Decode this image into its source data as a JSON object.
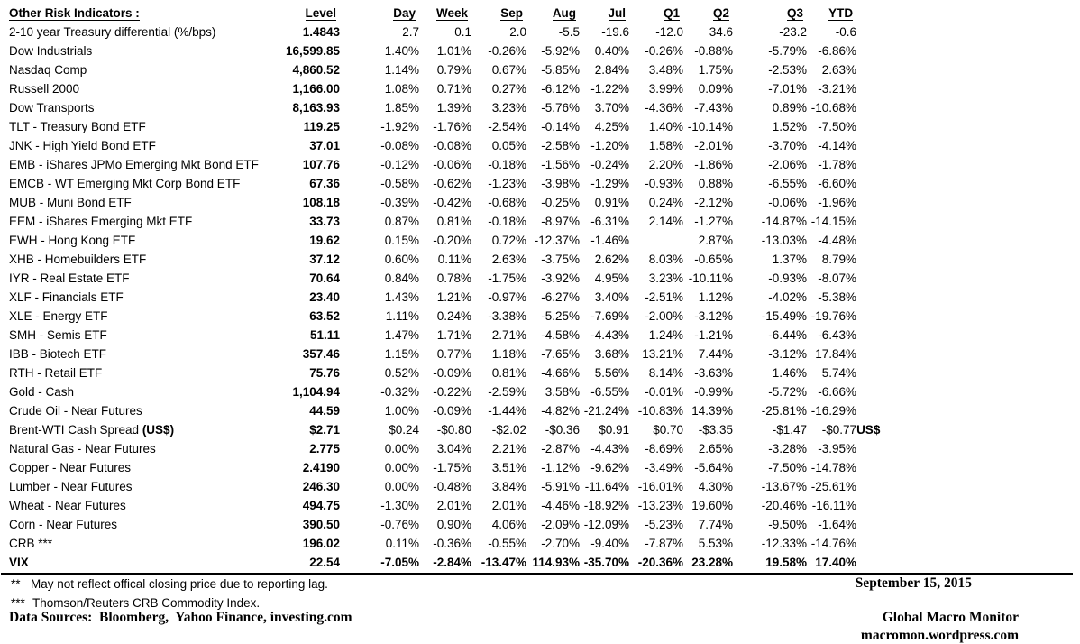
{
  "page": {
    "background": "#ffffff",
    "text_color": "#000000"
  },
  "table": {
    "title": "Other Risk Indicators :",
    "columns": [
      "Level",
      "Day",
      "Week",
      "Sep",
      "Aug",
      "Jul",
      "Q1",
      "Q2",
      "Q3",
      "YTD"
    ],
    "rows": [
      {
        "label": "2-10 year Treasury differential (%/bps)",
        "label_bold": "",
        "values": [
          "1.4843",
          "2.7",
          "0.1",
          "2.0",
          "-5.5",
          "-19.6",
          "-12.0",
          "34.6",
          "-23.2",
          "-0.6"
        ],
        "extra": "",
        "bold": false
      },
      {
        "label": "Dow Industrials",
        "label_bold": "",
        "values": [
          "16,599.85",
          "1.40%",
          "1.01%",
          "-0.26%",
          "-5.92%",
          "0.40%",
          "-0.26%",
          "-0.88%",
          "-5.79%",
          "-6.86%"
        ],
        "extra": "",
        "bold": false
      },
      {
        "label": "Nasdaq Comp",
        "label_bold": "",
        "values": [
          "4,860.52",
          "1.14%",
          "0.79%",
          "0.67%",
          "-5.85%",
          "2.84%",
          "3.48%",
          "1.75%",
          "-2.53%",
          "2.63%"
        ],
        "extra": "",
        "bold": false
      },
      {
        "label": "Russell 2000",
        "label_bold": "",
        "values": [
          "1,166.00",
          "1.08%",
          "0.71%",
          "0.27%",
          "-6.12%",
          "-1.22%",
          "3.99%",
          "0.09%",
          "-7.01%",
          "-3.21%"
        ],
        "extra": "",
        "bold": false
      },
      {
        "label": "Dow Transports",
        "label_bold": "",
        "values": [
          "8,163.93",
          "1.85%",
          "1.39%",
          "3.23%",
          "-5.76%",
          "3.70%",
          "-4.36%",
          "-7.43%",
          "0.89%",
          "-10.68%"
        ],
        "extra": "",
        "bold": false
      },
      {
        "label": "TLT - Treasury Bond ETF",
        "label_bold": "",
        "values": [
          "119.25",
          "-1.92%",
          "-1.76%",
          "-2.54%",
          "-0.14%",
          "4.25%",
          "1.40%",
          "-10.14%",
          "1.52%",
          "-7.50%"
        ],
        "extra": "",
        "bold": false
      },
      {
        "label": "JNK - High Yield Bond ETF",
        "label_bold": "",
        "values": [
          "37.01",
          "-0.08%",
          "-0.08%",
          "0.05%",
          "-2.58%",
          "-1.20%",
          "1.58%",
          "-2.01%",
          "-3.70%",
          "-4.14%"
        ],
        "extra": "",
        "bold": false
      },
      {
        "label": "EMB - iShares JPMo Emerging Mkt Bond ETF",
        "label_bold": "",
        "values": [
          "107.76",
          "-0.12%",
          "-0.06%",
          "-0.18%",
          "-1.56%",
          "-0.24%",
          "2.20%",
          "-1.86%",
          "-2.06%",
          "-1.78%"
        ],
        "extra": "",
        "bold": false
      },
      {
        "label": "EMCB - WT Emerging Mkt Corp Bond ETF",
        "label_bold": "",
        "values": [
          "67.36",
          "-0.58%",
          "-0.62%",
          "-1.23%",
          "-3.98%",
          "-1.29%",
          "-0.93%",
          "0.88%",
          "-6.55%",
          "-6.60%"
        ],
        "extra": "",
        "bold": false
      },
      {
        "label": "MUB - Muni Bond ETF",
        "label_bold": "",
        "values": [
          "108.18",
          "-0.39%",
          "-0.42%",
          "-0.68%",
          "-0.25%",
          "0.91%",
          "0.24%",
          "-2.12%",
          "-0.06%",
          "-1.96%"
        ],
        "extra": "",
        "bold": false
      },
      {
        "label": "EEM - iShares Emerging Mkt ETF",
        "label_bold": "",
        "values": [
          "33.73",
          "0.87%",
          "0.81%",
          "-0.18%",
          "-8.97%",
          "-6.31%",
          "2.14%",
          "-1.27%",
          "-14.87%",
          "-14.15%"
        ],
        "extra": "",
        "bold": false
      },
      {
        "label": "EWH - Hong Kong ETF",
        "label_bold": "",
        "values": [
          "19.62",
          "0.15%",
          "-0.20%",
          "0.72%",
          "-12.37%",
          "-1.46%",
          "",
          "2.87%",
          "-13.03%",
          "-4.48%"
        ],
        "extra": "",
        "bold": false
      },
      {
        "label": "XHB - Homebuilders ETF",
        "label_bold": "",
        "values": [
          "37.12",
          "0.60%",
          "0.11%",
          "2.63%",
          "-3.75%",
          "2.62%",
          "8.03%",
          "-0.65%",
          "1.37%",
          "8.79%"
        ],
        "extra": "",
        "bold": false
      },
      {
        "label": "IYR - Real Estate ETF",
        "label_bold": "",
        "values": [
          "70.64",
          "0.84%",
          "0.78%",
          "-1.75%",
          "-3.92%",
          "4.95%",
          "3.23%",
          "-10.11%",
          "-0.93%",
          "-8.07%"
        ],
        "extra": "",
        "bold": false
      },
      {
        "label": "XLF - Financials ETF",
        "label_bold": "",
        "values": [
          "23.40",
          "1.43%",
          "1.21%",
          "-0.97%",
          "-6.27%",
          "3.40%",
          "-2.51%",
          "1.12%",
          "-4.02%",
          "-5.38%"
        ],
        "extra": "",
        "bold": false
      },
      {
        "label": "XLE - Energy ETF",
        "label_bold": "",
        "values": [
          "63.52",
          "1.11%",
          "0.24%",
          "-3.38%",
          "-5.25%",
          "-7.69%",
          "-2.00%",
          "-3.12%",
          "-15.49%",
          "-19.76%"
        ],
        "extra": "",
        "bold": false
      },
      {
        "label": "SMH - Semis ETF",
        "label_bold": "",
        "values": [
          "51.11",
          "1.47%",
          "1.71%",
          "2.71%",
          "-4.58%",
          "-4.43%",
          "1.24%",
          "-1.21%",
          "-6.44%",
          "-6.43%"
        ],
        "extra": "",
        "bold": false
      },
      {
        "label": "IBB - Biotech ETF",
        "label_bold": "",
        "values": [
          "357.46",
          "1.15%",
          "0.77%",
          "1.18%",
          "-7.65%",
          "3.68%",
          "13.21%",
          "7.44%",
          "-3.12%",
          "17.84%"
        ],
        "extra": "",
        "bold": false
      },
      {
        "label": "RTH - Retail ETF",
        "label_bold": "",
        "values": [
          "75.76",
          "0.52%",
          "-0.09%",
          "0.81%",
          "-4.66%",
          "5.56%",
          "8.14%",
          "-3.63%",
          "1.46%",
          "5.74%"
        ],
        "extra": "",
        "bold": false
      },
      {
        "label": "Gold - Cash",
        "label_bold": "",
        "values": [
          "1,104.94",
          "-0.32%",
          "-0.22%",
          "-2.59%",
          "3.58%",
          "-6.55%",
          "-0.01%",
          "-0.99%",
          "-5.72%",
          "-6.66%"
        ],
        "extra": "",
        "bold": false
      },
      {
        "label": "Crude Oil - Near Futures",
        "label_bold": "",
        "values": [
          "44.59",
          "1.00%",
          "-0.09%",
          "-1.44%",
          "-4.82%",
          "-21.24%",
          "-10.83%",
          "14.39%",
          "-25.81%",
          "-16.29%"
        ],
        "extra": "",
        "bold": false
      },
      {
        "label": "Brent-WTI Cash Spread ",
        "label_bold": "(US$)",
        "values": [
          "$2.71",
          "$0.24",
          "-$0.80",
          "-$2.02",
          "-$0.36",
          "$0.91",
          "$0.70",
          "-$3.35",
          "-$1.47",
          "-$0.77"
        ],
        "extra": "US$",
        "bold": false
      },
      {
        "label": "Natural Gas - Near Futures",
        "label_bold": "",
        "values": [
          "2.775",
          "0.00%",
          "3.04%",
          "2.21%",
          "-2.87%",
          "-4.43%",
          "-8.69%",
          "2.65%",
          "-3.28%",
          "-3.95%"
        ],
        "extra": "",
        "bold": false
      },
      {
        "label": "Copper - Near Futures",
        "label_bold": "",
        "values": [
          "2.4190",
          "0.00%",
          "-1.75%",
          "3.51%",
          "-1.12%",
          "-9.62%",
          "-3.49%",
          "-5.64%",
          "-7.50%",
          "-14.78%"
        ],
        "extra": "",
        "bold": false
      },
      {
        "label": "Lumber - Near Futures",
        "label_bold": "",
        "values": [
          "246.30",
          "0.00%",
          "-0.48%",
          "3.84%",
          "-5.91%",
          "-11.64%",
          "-16.01%",
          "4.30%",
          "-13.67%",
          "-25.61%"
        ],
        "extra": "",
        "bold": false
      },
      {
        "label": "Wheat - Near Futures",
        "label_bold": "",
        "values": [
          "494.75",
          "-1.30%",
          "2.01%",
          "2.01%",
          "-4.46%",
          "-18.92%",
          "-13.23%",
          "19.60%",
          "-20.46%",
          "-16.11%"
        ],
        "extra": "",
        "bold": false
      },
      {
        "label": "Corn - Near Futures",
        "label_bold": "",
        "values": [
          "390.50",
          "-0.76%",
          "0.90%",
          "4.06%",
          "-2.09%",
          "-12.09%",
          "-5.23%",
          "7.74%",
          "-9.50%",
          "-1.64%"
        ],
        "extra": "",
        "bold": false
      },
      {
        "label": "CRB ***",
        "label_bold": "",
        "values": [
          "196.02",
          "0.11%",
          "-0.36%",
          "-0.55%",
          "-2.70%",
          "-9.40%",
          "-7.87%",
          "5.53%",
          "-12.33%",
          "-14.76%"
        ],
        "extra": "",
        "bold": false
      },
      {
        "label": "VIX",
        "label_bold": "",
        "values": [
          "22.54",
          "-7.05%",
          "-2.84%",
          "-13.47%",
          "114.93%",
          "-35.70%",
          "-20.36%",
          "23.28%",
          "19.58%",
          "17.40%"
        ],
        "extra": "",
        "bold": true
      }
    ]
  },
  "footer": {
    "footnotes": [
      {
        "marker": "**",
        "text": "May not reflect offical closing price due to reporting lag."
      },
      {
        "marker": "***",
        "text": "Thomson/Reuters CRB Commodity Index."
      }
    ],
    "data_sources": "Data Sources:  Bloomberg,  Yahoo Finance, investing.com",
    "date": "September 15, 2015",
    "publication": "Global Macro Monitor",
    "website": "macromon.wordpress.com"
  }
}
